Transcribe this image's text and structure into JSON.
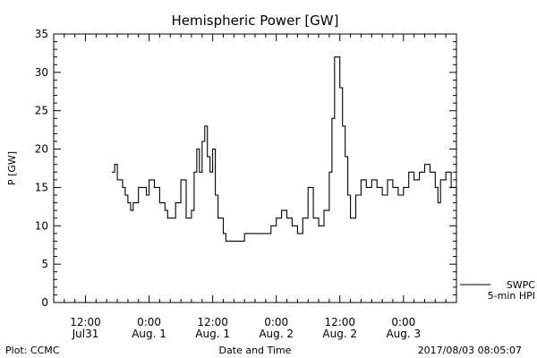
{
  "chart_data": {
    "type": "line",
    "title": "Hemispheric Power [GW]",
    "xlabel": "Date and Time",
    "ylabel": "P [GW]",
    "ylim": [
      0,
      35
    ],
    "y_ticks": [
      "0",
      "5",
      "10",
      "15",
      "20",
      "25",
      "30",
      "35"
    ],
    "x_ticks": [
      {
        "time": "12:00",
        "date": "Jul31"
      },
      {
        "time": "0:00",
        "date": "Aug. 1"
      },
      {
        "time": "12:00",
        "date": "Aug. 1"
      },
      {
        "time": "0:00",
        "date": "Aug. 2"
      },
      {
        "time": "12:00",
        "date": "Aug. 2"
      },
      {
        "time": "0:00",
        "date": "Aug. 3"
      }
    ],
    "x_axis_hours_start": "2017-07-31 06:00",
    "x_axis_hours_end": "2017-08-03 10:00",
    "grid": false,
    "legend": [
      {
        "name": "SWPC",
        "line": "solid"
      },
      {
        "name": "5-min HPI",
        "line": "none"
      }
    ],
    "series": [
      {
        "name": "SWPC",
        "step": true,
        "x": [
          "2017-07-31 17:00",
          "2017-07-31 17:30",
          "2017-07-31 18:00",
          "2017-07-31 18:30",
          "2017-07-31 19:00",
          "2017-07-31 19:30",
          "2017-07-31 20:00",
          "2017-07-31 20:30",
          "2017-07-31 21:00",
          "2017-07-31 22:00",
          "2017-07-31 23:00",
          "2017-07-31 23:30",
          "2017-08-01 00:00",
          "2017-08-01 00:30",
          "2017-08-01 01:00",
          "2017-08-01 02:00",
          "2017-08-01 03:00",
          "2017-08-01 03:30",
          "2017-08-01 04:00",
          "2017-08-01 05:00",
          "2017-08-01 06:00",
          "2017-08-01 07:00",
          "2017-08-01 08:00",
          "2017-08-01 08:30",
          "2017-08-01 09:00",
          "2017-08-01 09:30",
          "2017-08-01 10:00",
          "2017-08-01 10:30",
          "2017-08-01 11:00",
          "2017-08-01 11:30",
          "2017-08-01 12:00",
          "2017-08-01 12:30",
          "2017-08-01 13:00",
          "2017-08-01 14:00",
          "2017-08-01 14:30",
          "2017-08-01 15:00",
          "2017-08-01 15:30",
          "2017-08-01 16:00",
          "2017-08-01 17:00",
          "2017-08-01 18:00",
          "2017-08-01 19:00",
          "2017-08-01 20:00",
          "2017-08-01 21:00",
          "2017-08-01 22:00",
          "2017-08-01 23:00",
          "2017-08-02 00:00",
          "2017-08-02 01:00",
          "2017-08-02 02:00",
          "2017-08-02 03:00",
          "2017-08-02 04:00",
          "2017-08-02 05:00",
          "2017-08-02 06:00",
          "2017-08-02 07:00",
          "2017-08-02 08:00",
          "2017-08-02 09:00",
          "2017-08-02 10:00",
          "2017-08-02 10:30",
          "2017-08-02 11:00",
          "2017-08-02 12:00",
          "2017-08-02 12:30",
          "2017-08-02 13:00",
          "2017-08-02 13:30",
          "2017-08-02 14:00",
          "2017-08-02 15:00",
          "2017-08-02 16:00",
          "2017-08-02 17:00",
          "2017-08-02 18:00",
          "2017-08-02 19:00",
          "2017-08-02 20:00",
          "2017-08-02 21:00",
          "2017-08-02 22:00",
          "2017-08-02 23:00",
          "2017-08-03 00:00",
          "2017-08-03 01:00",
          "2017-08-03 02:00",
          "2017-08-03 03:00",
          "2017-08-03 04:00",
          "2017-08-03 05:00",
          "2017-08-03 06:00",
          "2017-08-03 06:30",
          "2017-08-03 07:00",
          "2017-08-03 08:00",
          "2017-08-03 09:00",
          "2017-08-03 10:00"
        ],
        "values": [
          17,
          18,
          16,
          16,
          15,
          14,
          13,
          12,
          13,
          15,
          15,
          14,
          16,
          16,
          15,
          13,
          12,
          11,
          11,
          13,
          16,
          11,
          12,
          17,
          20,
          17,
          21,
          23,
          19,
          17,
          20,
          14,
          11,
          9,
          8,
          8,
          8,
          8,
          8,
          9,
          9,
          9,
          9,
          9,
          10,
          11,
          12,
          11,
          10,
          9,
          11,
          15,
          11,
          10,
          12,
          17,
          24,
          32,
          28,
          23,
          19,
          14,
          11,
          14,
          16,
          15,
          16,
          15,
          14,
          16,
          15,
          14,
          15,
          17,
          16,
          17,
          18,
          17,
          15,
          13,
          16,
          17,
          15,
          14
        ]
      }
    ]
  },
  "footer": {
    "plot_credit": "Plot: CCMC",
    "timestamp": "2017/08/03 08:05:07"
  }
}
